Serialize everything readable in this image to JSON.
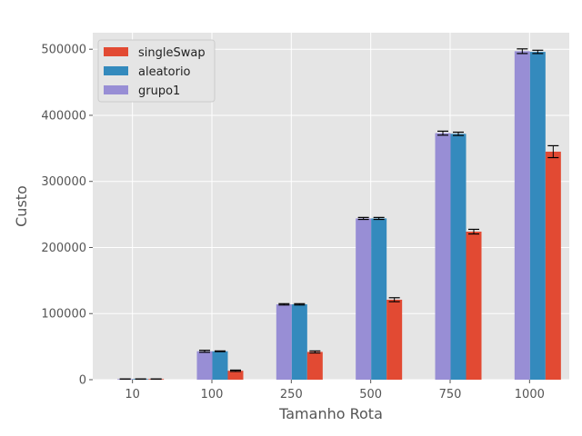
{
  "chart_data": {
    "type": "bar",
    "xlabel": "Tamanho Rota",
    "ylabel": "Custo",
    "categories": [
      "10",
      "100",
      "250",
      "500",
      "750",
      "1000"
    ],
    "ylim": [
      0,
      525000
    ],
    "yticks": [
      0,
      100000,
      200000,
      300000,
      400000,
      500000
    ],
    "ytick_labels": [
      "0",
      "100000",
      "200000",
      "300000",
      "400000",
      "500000"
    ],
    "grid": true,
    "legend_position": "top-left",
    "series": [
      {
        "name": "grupo1",
        "color": "#988ED5",
        "values": [
          1000,
          43000,
          114000,
          244000,
          373000,
          497000
        ],
        "errors": [
          0,
          1500,
          1000,
          1500,
          3000,
          3500
        ]
      },
      {
        "name": "aleatorio",
        "color": "#348ABD",
        "values": [
          1000,
          43000,
          114000,
          244000,
          372000,
          496000
        ],
        "errors": [
          0,
          500,
          1000,
          1500,
          2500,
          2500
        ]
      },
      {
        "name": "singleSwap",
        "color": "#E24A33",
        "values": [
          1000,
          13500,
          42000,
          121000,
          224000,
          345000
        ],
        "errors": [
          0,
          1000,
          1500,
          3000,
          3500,
          9000
        ]
      }
    ],
    "legend_order": [
      "singleSwap",
      "aleatorio",
      "grupo1"
    ]
  }
}
